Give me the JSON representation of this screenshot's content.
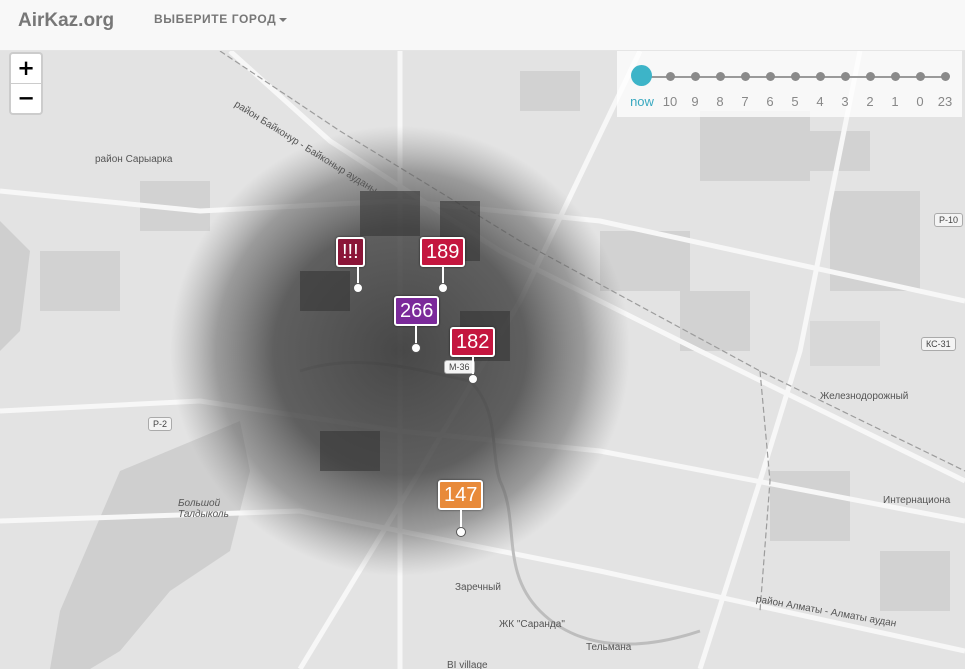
{
  "navbar": {
    "brand": "AirKaz.org",
    "city_select": "ВЫБЕРИТЕ ГОРОД"
  },
  "zoom": {
    "in": "+",
    "out": "−"
  },
  "timeline": {
    "active": "now",
    "labels": [
      "now",
      "10",
      "9",
      "8",
      "7",
      "6",
      "5",
      "4",
      "3",
      "2",
      "1",
      "0",
      "23"
    ]
  },
  "markers": [
    {
      "label": "!!!",
      "color": "#8b1538"
    },
    {
      "label": "189",
      "color": "#c4163f"
    },
    {
      "label": "266",
      "color": "#7b2a9a"
    },
    {
      "label": "182",
      "color": "#c4163f"
    },
    {
      "label": "147",
      "color": "#e88a3a"
    }
  ],
  "map_labels": {
    "district_saryarka": "район Сарыарка",
    "baikonur": "район Байконур - Байконыр ауданы",
    "bolshoy_taldykol": "Большой Талдыколь",
    "zhelezn": "Железнодорожный",
    "internat": "Интернациона",
    "zarechny": "Заречный",
    "saranda": "ЖК \"Саранда\"",
    "telmana": "Тельмана",
    "almaty": "район Алматы - Алматы аудан",
    "bi_village": "BI village",
    "road_p2": "P-2",
    "road_p10": "P-10",
    "road_ks31": "КС-31",
    "road_m36": "M-36"
  }
}
